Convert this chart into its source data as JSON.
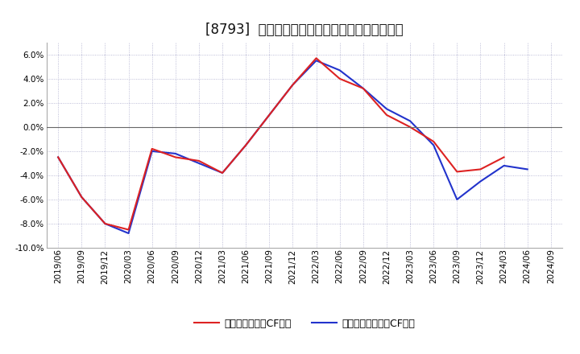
{
  "title": "[8793]  有利子負債キャッシュフロー比率の推移",
  "x_labels": [
    "2019/06",
    "2019/09",
    "2019/12",
    "2020/03",
    "2020/06",
    "2020/09",
    "2020/12",
    "2021/03",
    "2021/06",
    "2021/09",
    "2021/12",
    "2022/03",
    "2022/06",
    "2022/09",
    "2022/12",
    "2023/03",
    "2023/06",
    "2023/09",
    "2023/12",
    "2024/03",
    "2024/06",
    "2024/09"
  ],
  "operating_cf": [
    -2.5,
    -5.8,
    -8.0,
    -8.5,
    -1.8,
    -2.5,
    -2.8,
    -3.8,
    -1.5,
    1.0,
    3.5,
    5.7,
    4.0,
    3.2,
    1.0,
    0.0,
    -1.2,
    -3.7,
    -3.5,
    -2.5,
    null,
    null
  ],
  "free_cf": [
    -2.5,
    -5.8,
    -8.0,
    -8.8,
    -2.0,
    -2.2,
    -3.0,
    -3.8,
    -1.5,
    1.0,
    3.5,
    5.5,
    4.7,
    3.2,
    1.5,
    0.5,
    -1.5,
    -6.0,
    -4.5,
    -3.2,
    -3.5,
    null
  ],
  "operating_color": "#dd2222",
  "free_color": "#2233cc",
  "background_color": "#ffffff",
  "plot_bg_color": "#ffffff",
  "grid_color": "#aaaacc",
  "ylim": [
    -10.0,
    7.0
  ],
  "yticks": [
    -10.0,
    -8.0,
    -6.0,
    -4.0,
    -2.0,
    0.0,
    2.0,
    4.0,
    6.0
  ],
  "legend_op": "有利子負債営業CF比率",
  "legend_free": "有利子負債フリーCF比率",
  "linewidth": 1.5,
  "title_fontsize": 12,
  "label_fontsize": 7.5
}
